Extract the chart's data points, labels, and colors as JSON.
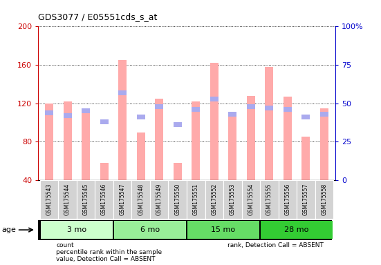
{
  "title": "GDS3077 / E05551cds_s_at",
  "samples": [
    "GSM175543",
    "GSM175544",
    "GSM175545",
    "GSM175546",
    "GSM175547",
    "GSM175548",
    "GSM175549",
    "GSM175550",
    "GSM175551",
    "GSM175552",
    "GSM175553",
    "GSM175554",
    "GSM175555",
    "GSM175556",
    "GSM175557",
    "GSM175558"
  ],
  "value_bars": [
    120,
    122,
    115,
    58,
    165,
    90,
    125,
    58,
    122,
    162,
    108,
    128,
    158,
    127,
    85,
    115
  ],
  "rank_pct": [
    44,
    42,
    45,
    38,
    57,
    41,
    48,
    36,
    46,
    53,
    43,
    48,
    47,
    46,
    41,
    43
  ],
  "age_groups": [
    {
      "label": "3 mo",
      "start": 0,
      "end": 4,
      "color": "#ccffcc"
    },
    {
      "label": "6 mo",
      "start": 4,
      "end": 8,
      "color": "#99ee99"
    },
    {
      "label": "15 mo",
      "start": 8,
      "end": 12,
      "color": "#66dd66"
    },
    {
      "label": "28 mo",
      "start": 12,
      "end": 16,
      "color": "#33cc33"
    }
  ],
  "ylim_left": [
    40,
    200
  ],
  "ylim_right": [
    0,
    100
  ],
  "yticks_left": [
    40,
    80,
    120,
    160,
    200
  ],
  "yticks_right": [
    0,
    25,
    50,
    75,
    100
  ],
  "left_tick_labels": [
    "40",
    "80",
    "120",
    "160",
    "200"
  ],
  "right_tick_labels": [
    "0",
    "25",
    "50",
    "75",
    "100%"
  ],
  "bar_color_pink": "#ffaaaa",
  "bar_color_blue": "#aaaaee",
  "bg_color": "#d3d3d3",
  "plot_bg": "#ffffff",
  "left_axis_color": "#cc0000",
  "right_axis_color": "#0000cc"
}
